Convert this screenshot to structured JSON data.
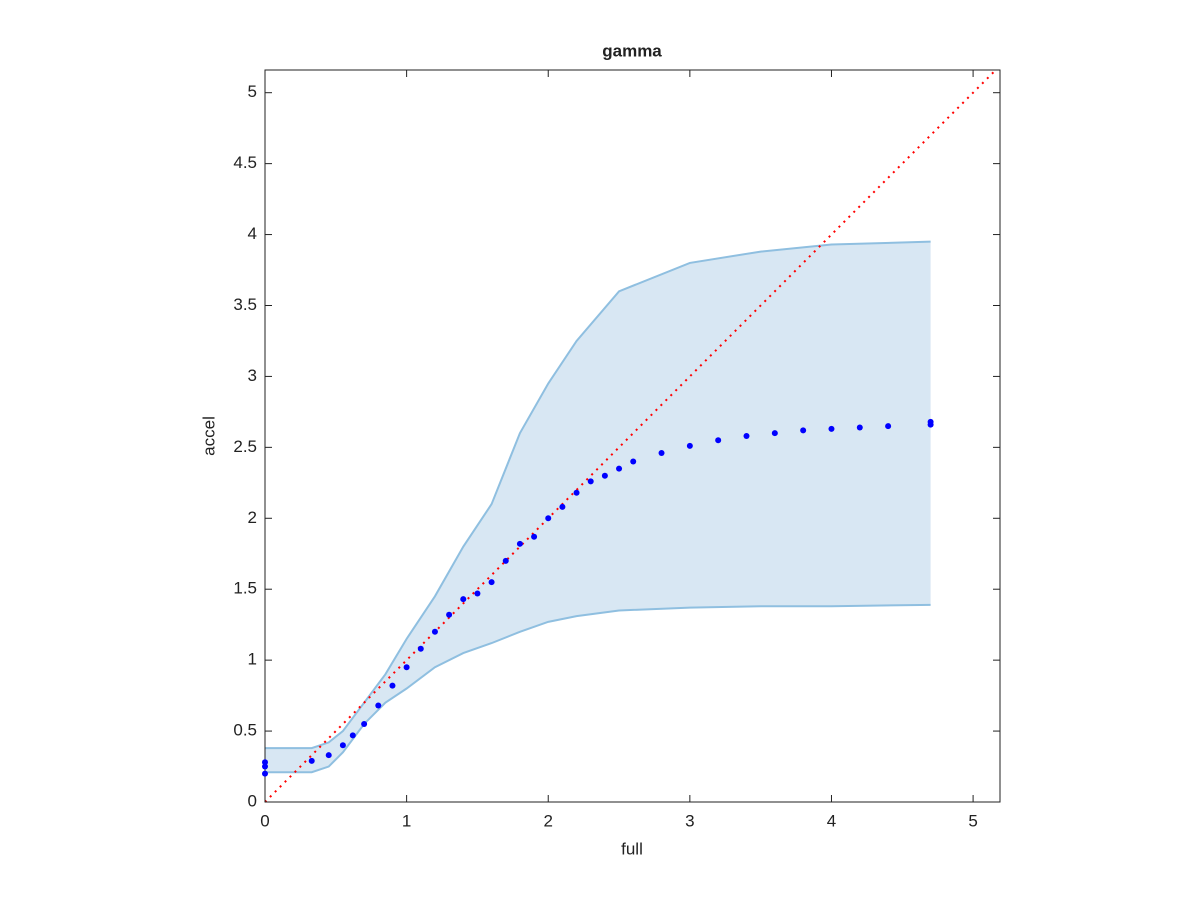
{
  "chart_data": {
    "type": "scatter",
    "title": "gamma",
    "x_label": "full",
    "y_label": "accel",
    "xlim": [
      0,
      5.19
    ],
    "ylim": [
      0,
      5.16
    ],
    "xticks": [
      0,
      1,
      2,
      3,
      4,
      5
    ],
    "yticks": [
      0,
      0.5,
      1,
      1.5,
      2,
      2.5,
      3,
      3.5,
      4,
      4.5,
      5
    ],
    "series": [
      {
        "color": "#0000ff",
        "x": [
          0,
          0,
          0,
          0.33,
          0.45,
          0.55,
          0.62,
          0.7,
          0.8,
          0.9,
          1.0,
          1.1,
          1.2,
          1.3,
          1.4,
          1.5,
          1.6,
          1.7,
          1.8,
          1.9,
          2.0,
          2.1,
          2.2,
          2.3,
          2.4,
          2.5,
          2.6,
          2.8,
          3.0,
          3.2,
          3.4,
          3.6,
          3.8,
          4.0,
          4.2,
          4.4,
          4.7,
          4.7
        ],
        "values": [
          0.2,
          0.25,
          0.28,
          0.29,
          0.33,
          0.4,
          0.47,
          0.55,
          0.68,
          0.82,
          0.95,
          1.08,
          1.2,
          1.32,
          1.43,
          1.47,
          1.55,
          1.7,
          1.82,
          1.87,
          2.0,
          2.08,
          2.18,
          2.26,
          2.3,
          2.35,
          2.4,
          2.46,
          2.51,
          2.55,
          2.58,
          2.6,
          2.62,
          2.63,
          2.64,
          2.65,
          2.66,
          2.68
        ]
      }
    ],
    "band": {
      "color": "#d8e7f3",
      "edge_color": "#8fbfe0",
      "x": [
        0,
        0.33,
        0.45,
        0.55,
        0.7,
        0.85,
        1.0,
        1.2,
        1.4,
        1.6,
        1.8,
        2.0,
        2.2,
        2.5,
        3.0,
        3.5,
        4.0,
        4.7
      ],
      "upper": [
        0.38,
        0.38,
        0.42,
        0.5,
        0.7,
        0.9,
        1.15,
        1.45,
        1.8,
        2.1,
        2.6,
        2.95,
        3.25,
        3.6,
        3.8,
        3.88,
        3.93,
        3.95
      ],
      "lower": [
        0.21,
        0.21,
        0.25,
        0.35,
        0.55,
        0.7,
        0.8,
        0.95,
        1.05,
        1.12,
        1.2,
        1.27,
        1.31,
        1.35,
        1.37,
        1.38,
        1.38,
        1.39
      ]
    },
    "reference_line": {
      "color": "#ff0000",
      "x": [
        0,
        5.16
      ],
      "y": [
        0,
        5.16
      ]
    }
  }
}
